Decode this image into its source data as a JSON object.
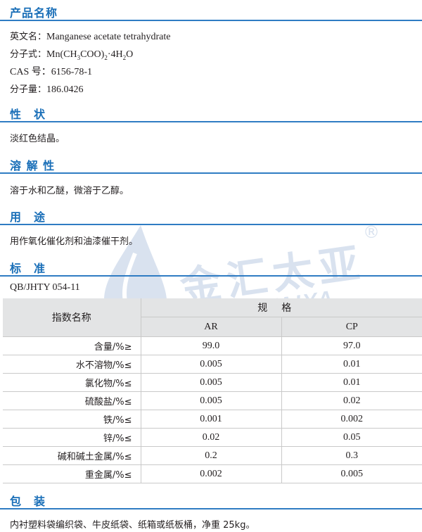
{
  "sections": {
    "product_name": {
      "title": "产品名称"
    },
    "properties": {
      "title": "性　状",
      "text": "淡红色结晶。"
    },
    "solubility": {
      "title": "溶 解 性",
      "text": "溶于水和乙醚，微溶于乙醇。"
    },
    "usage": {
      "title": "用　途",
      "text": "用作氧化催化剂和油漆催干剂。"
    },
    "standard": {
      "title": "标　准",
      "code": "QB/JHTY 054-11"
    },
    "packaging": {
      "title": "包　装",
      "text": "内衬塑料袋编织袋、牛皮纸袋、纸箱或纸板桶，净重 25kg。"
    }
  },
  "product": {
    "english_label": "英文名：",
    "english_value": "Manganese acetate tetrahydrate",
    "formula_label": "分子式：",
    "formula_parts": {
      "a": "Mn(CH",
      "s1": "3",
      "b": "COO)",
      "s2": "2",
      "c": "·4H",
      "s3": "2",
      "d": "O"
    },
    "cas_label": "CAS 号：",
    "cas_value": "6156-78-1",
    "mw_label": "分子量：",
    "mw_value": "186.0426"
  },
  "table": {
    "col_name_header": "指数名称",
    "spec_header": "规格",
    "grade_ar": "AR",
    "grade_cp": "CP",
    "rows": [
      {
        "name": "含量/%≥",
        "ar": "99.0",
        "cp": "97.0"
      },
      {
        "name": "水不溶物/%≤",
        "ar": "0.005",
        "cp": "0.01"
      },
      {
        "name": "氯化物/%≤",
        "ar": "0.005",
        "cp": "0.01"
      },
      {
        "name": "硫酸盐/%≤",
        "ar": "0.005",
        "cp": "0.02"
      },
      {
        "name": "铁/%≤",
        "ar": "0.001",
        "cp": "0.002"
      },
      {
        "name": "锌/%≤",
        "ar": "0.02",
        "cp": "0.05"
      },
      {
        "name": "碱和碱土金属/%≤",
        "ar": "0.2",
        "cp": "0.3"
      },
      {
        "name": "重金属/%≤",
        "ar": "0.002",
        "cp": "0.005"
      }
    ]
  },
  "watermark": {
    "brand_cn": "金汇太亚",
    "brand_en": "JINHUITAIYA",
    "registered": "®",
    "color": "#8aa8cf"
  },
  "colors": {
    "heading": "#1a6fb8",
    "rule": "#2f7cc3",
    "table_header_bg": "#e3e4e5"
  }
}
